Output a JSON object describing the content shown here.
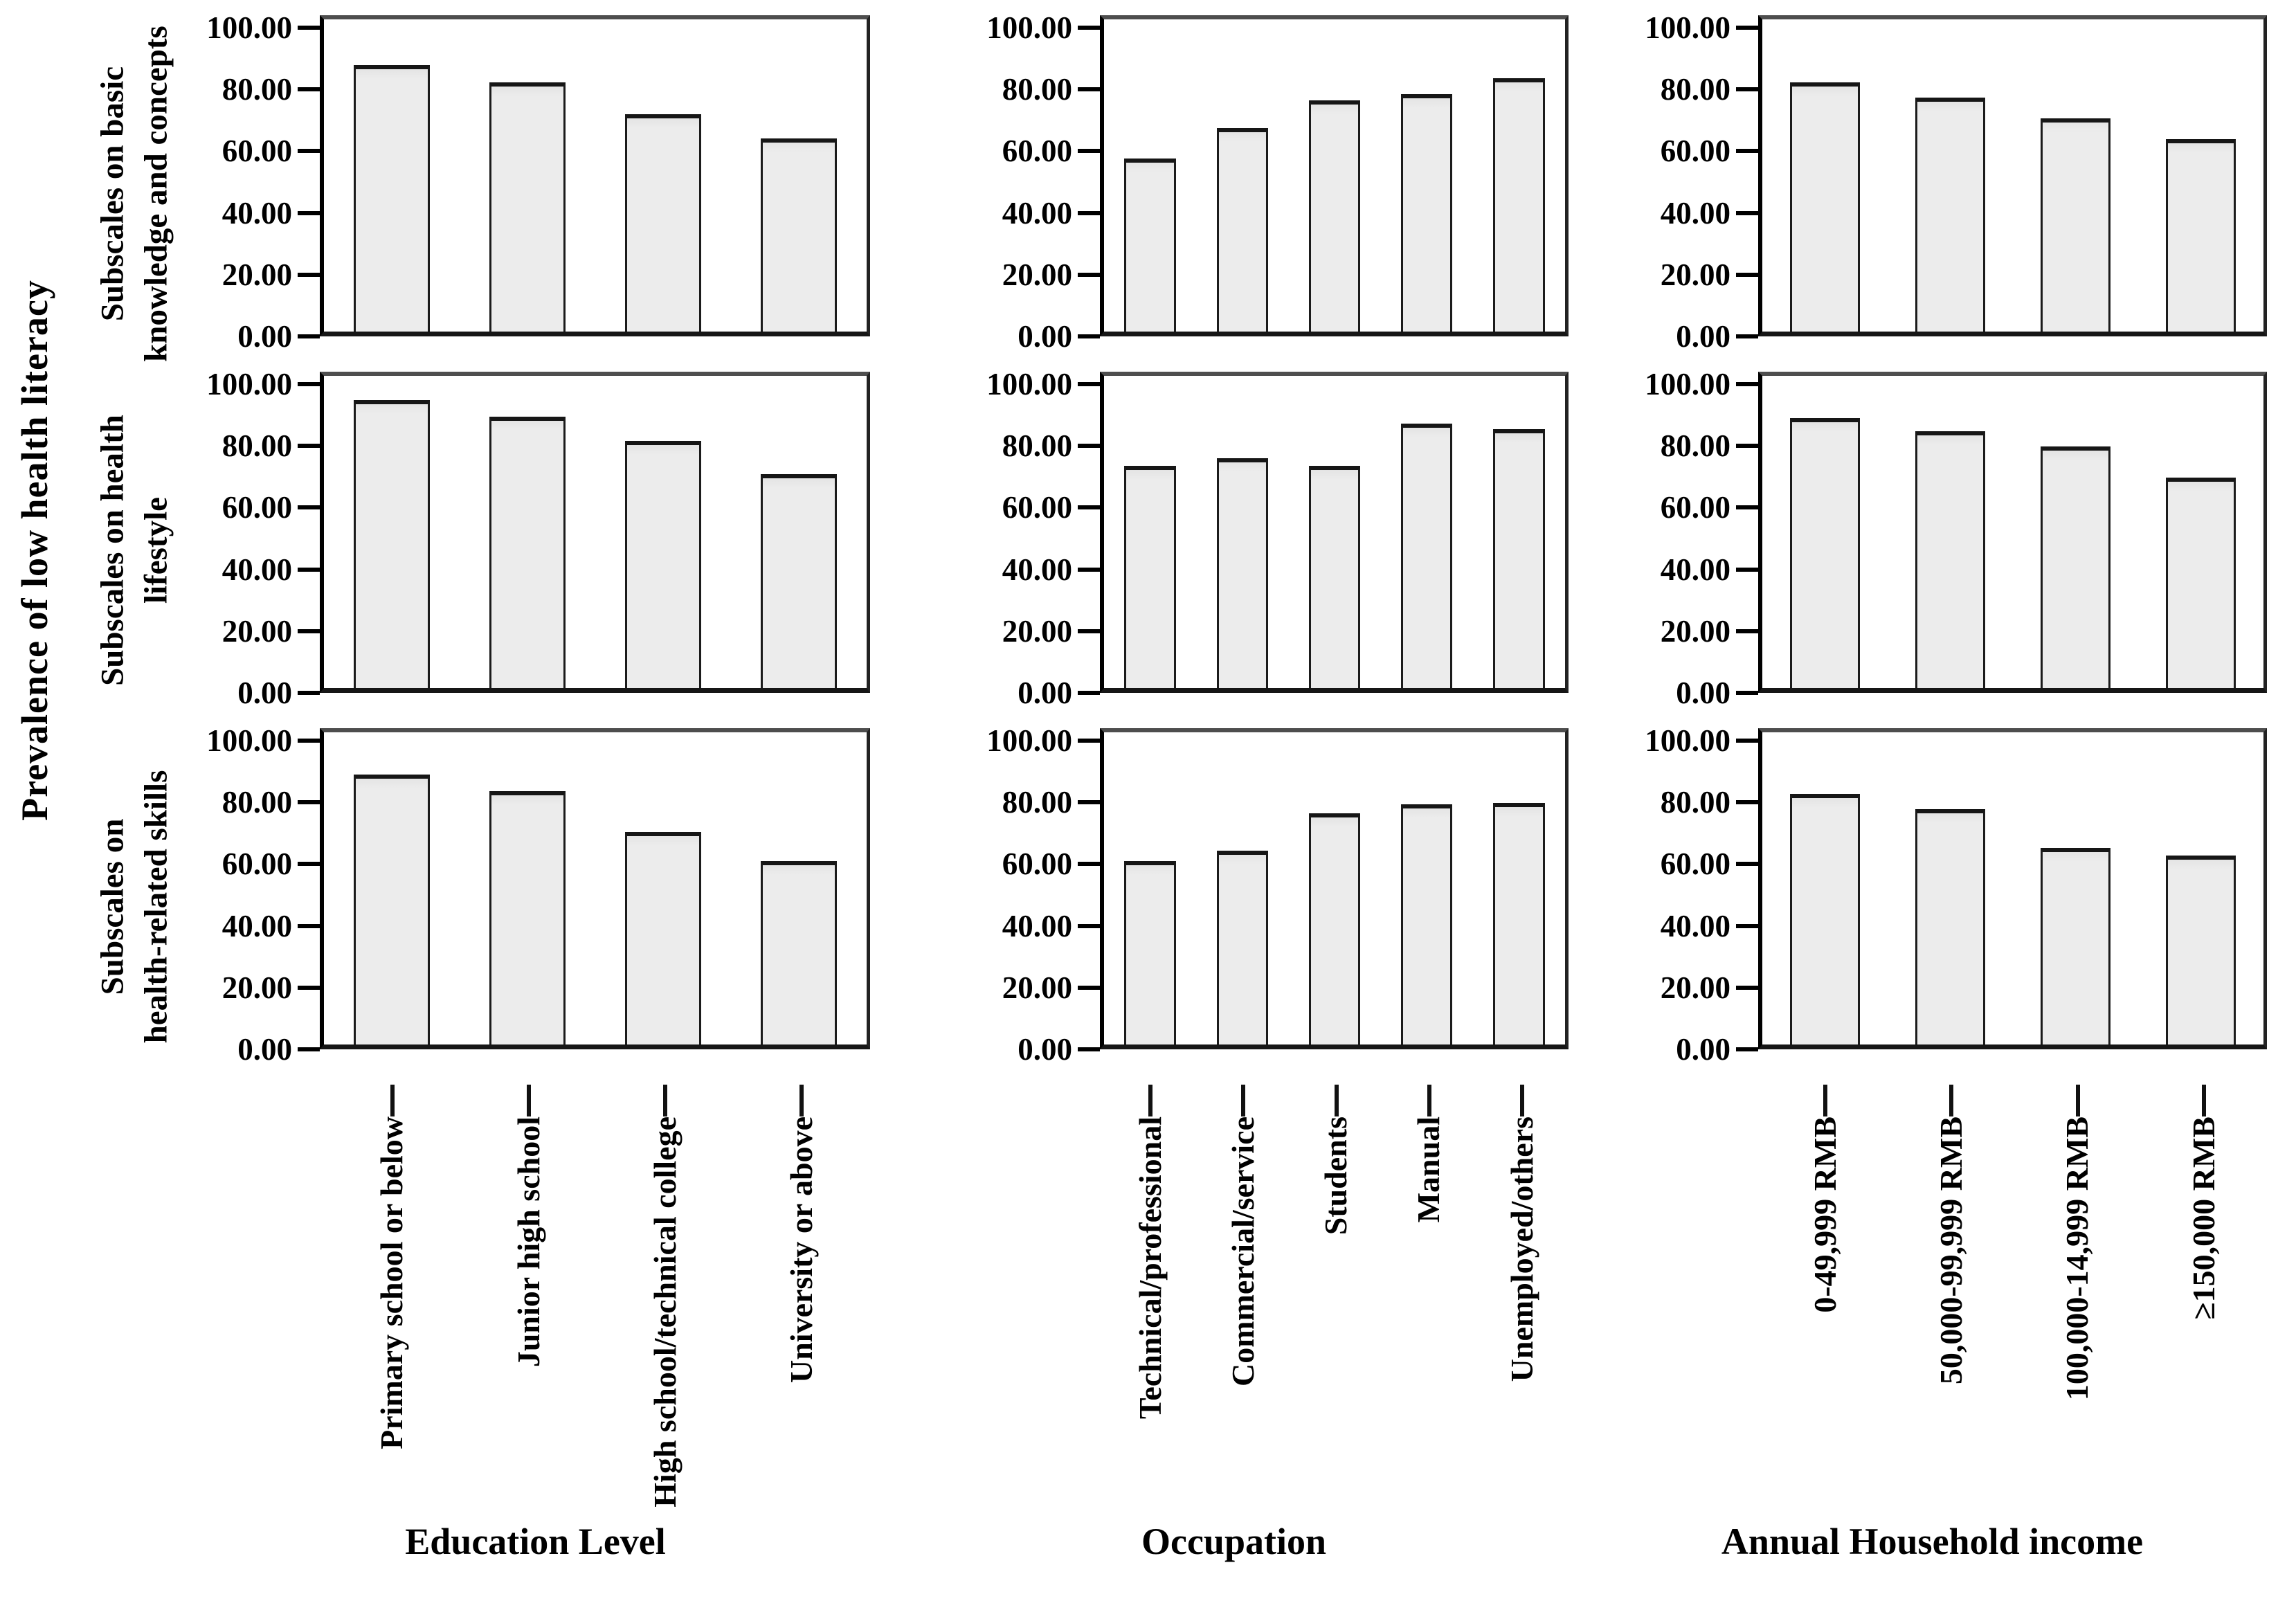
{
  "figure": {
    "y_axis_title": "Prevalence of low health literacy",
    "row_labels": [
      [
        "Subscales on basic",
        "knowledge and concepts"
      ],
      [
        "Subscales on health",
        "lifestyle"
      ],
      [
        "Subscales on",
        "health-related skills"
      ]
    ],
    "col_titles": [
      "Education Level",
      "Occupation",
      "Annual Household income"
    ],
    "y_ticks": [
      "0.00",
      "20.00",
      "40.00",
      "60.00",
      "80.00",
      "100.00"
    ],
    "bar_fill_color": "#e9e9e9",
    "bar_border_color": "#1b1b1b",
    "axis_color": "#000000"
  },
  "chart_data": [
    {
      "type": "bar",
      "row_label": "Subscales on basic knowledge and concepts",
      "group": "Education Level",
      "categories": [
        "Primary school or below",
        "Junior high school",
        "High school/technical college",
        "University or above"
      ],
      "values": [
        88.8,
        83.0,
        72.4,
        64.3
      ],
      "ylim": [
        0,
        100
      ]
    },
    {
      "type": "bar",
      "row_label": "Subscales on basic knowledge and concepts",
      "group": "Occupation",
      "categories": [
        "Technical/professional",
        "Commercial/service",
        "Students",
        "Manual",
        "Unemployed/others"
      ],
      "values": [
        57.7,
        67.7,
        77.0,
        79.0,
        84.5
      ],
      "ylim": [
        0,
        100
      ]
    },
    {
      "type": "bar",
      "row_label": "Subscales on basic knowledge and concepts",
      "group": "Annual Household income",
      "categories": [
        "0-49,999 RMB",
        "50,000-99,999 RMB",
        "100,000-14,999 RMB",
        "≥150,000 RMB"
      ],
      "values": [
        83.0,
        78.0,
        71.0,
        64.0
      ],
      "ylim": [
        0,
        100
      ]
    },
    {
      "type": "bar",
      "row_label": "Subscales on health lifestyle",
      "group": "Education Level",
      "categories": [
        "Primary school or below",
        "Junior high school",
        "High school/technical college",
        "University or above"
      ],
      "values": [
        96.0,
        90.3,
        82.3,
        71.2
      ],
      "ylim": [
        0,
        100
      ]
    },
    {
      "type": "bar",
      "row_label": "Subscales on health lifestyle",
      "group": "Occupation",
      "categories": [
        "Technical/professional",
        "Commercial/service",
        "Students",
        "Manual",
        "Unemployed/others"
      ],
      "values": [
        74.0,
        76.5,
        74.0,
        88.0,
        86.2
      ],
      "ylim": [
        0,
        100
      ]
    },
    {
      "type": "bar",
      "row_label": "Subscales on health lifestyle",
      "group": "Annual Household income",
      "categories": [
        "0-49,999 RMB",
        "50,000-99,999 RMB",
        "100,000-14,999 RMB",
        "≥150,000 RMB"
      ],
      "values": [
        90.0,
        85.5,
        80.5,
        70.0
      ],
      "ylim": [
        0,
        100
      ]
    },
    {
      "type": "bar",
      "row_label": "Subscales on health-related skills",
      "group": "Education Level",
      "categories": [
        "Primary school or below",
        "Junior high school",
        "High school/technical college",
        "University or above"
      ],
      "values": [
        90.0,
        84.3,
        70.7,
        61.0
      ],
      "ylim": [
        0,
        100
      ]
    },
    {
      "type": "bar",
      "row_label": "Subscales on health-related skills",
      "group": "Occupation",
      "categories": [
        "Technical/professional",
        "Commercial/service",
        "Students",
        "Manual",
        "Unemployed/others"
      ],
      "values": [
        61.0,
        64.5,
        77.0,
        80.0,
        80.5
      ],
      "ylim": [
        0,
        100
      ]
    },
    {
      "type": "bar",
      "row_label": "Subscales on health-related skills",
      "group": "Annual Household income",
      "categories": [
        "0-49,999 RMB",
        "50,000-99,999 RMB",
        "100,000-14,999 RMB",
        "≥150,000 RMB"
      ],
      "values": [
        83.5,
        78.5,
        65.5,
        63.0
      ],
      "ylim": [
        0,
        100
      ]
    }
  ]
}
